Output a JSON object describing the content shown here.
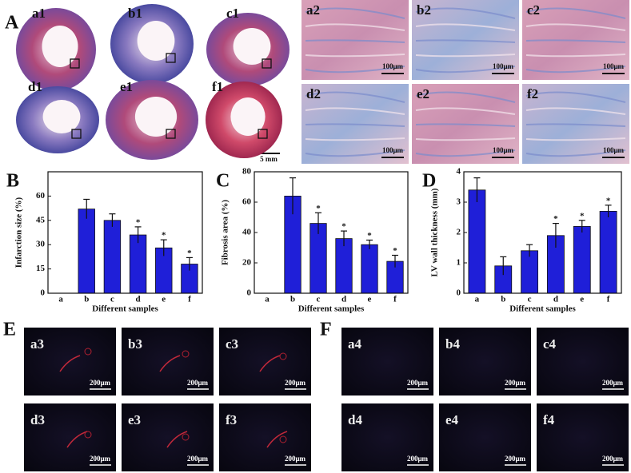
{
  "figure": {
    "panel_A": {
      "label": "A",
      "sections": [
        "a1",
        "b1",
        "c1",
        "d1",
        "e1",
        "f1"
      ],
      "section_scale": "5 mm",
      "micrographs": [
        "a2",
        "b2",
        "c2",
        "d2",
        "e2",
        "f2"
      ],
      "micrograph_scale": "100μm"
    },
    "panel_E": {
      "label": "E",
      "images": [
        "a3",
        "b3",
        "c3",
        "d3",
        "e3",
        "f3"
      ],
      "scale": "200μm"
    },
    "panel_F": {
      "label": "F",
      "images": [
        "a4",
        "b4",
        "c4",
        "d4",
        "e4",
        "f4"
      ],
      "scale": "200μm"
    }
  },
  "chart_data": [
    {
      "type": "bar",
      "panel_label": "B",
      "ylabel": "Infarction size (%)",
      "xlabel": "Different samples",
      "categories": [
        "a",
        "b",
        "c",
        "d",
        "e",
        "f"
      ],
      "values": [
        0,
        52,
        45,
        36,
        28,
        18
      ],
      "errors": [
        0,
        6,
        4,
        5,
        5,
        4
      ],
      "color": "#1f1fd8",
      "ylim": [
        0,
        75
      ],
      "yticks": [
        0,
        15,
        30,
        45,
        60
      ],
      "significance_marker": "*",
      "significant": [
        false,
        false,
        false,
        true,
        true,
        true
      ]
    },
    {
      "type": "bar",
      "panel_label": "C",
      "ylabel": "Fibrosis area (%)",
      "xlabel": "Different samples",
      "categories": [
        "a",
        "b",
        "c",
        "d",
        "e",
        "f"
      ],
      "values": [
        0,
        64,
        46,
        36,
        32,
        21
      ],
      "errors": [
        0,
        12,
        7,
        5,
        3,
        4
      ],
      "color": "#1f1fd8",
      "ylim": [
        0,
        80
      ],
      "yticks": [
        0,
        20,
        40,
        60,
        80
      ],
      "significance_marker": "*",
      "significant": [
        false,
        false,
        true,
        true,
        true,
        true
      ]
    },
    {
      "type": "bar",
      "panel_label": "D",
      "ylabel": "LV wall thickness (mm)",
      "xlabel": "Different samples",
      "categories": [
        "a",
        "b",
        "c",
        "d",
        "e",
        "f"
      ],
      "values": [
        3.4,
        0.9,
        1.4,
        1.9,
        2.2,
        2.7
      ],
      "errors": [
        0.4,
        0.3,
        0.2,
        0.4,
        0.2,
        0.2
      ],
      "color": "#1f1fd8",
      "ylim": [
        0,
        4
      ],
      "yticks": [
        0,
        1,
        2,
        3,
        4
      ],
      "significance_marker": "*",
      "significant": [
        false,
        false,
        false,
        true,
        true,
        true
      ]
    }
  ]
}
